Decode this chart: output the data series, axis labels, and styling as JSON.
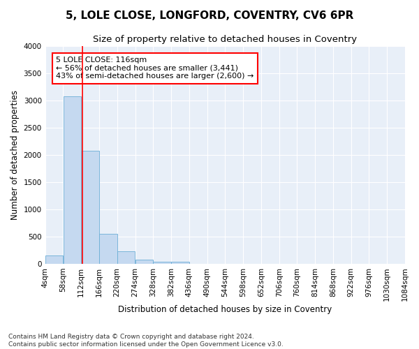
{
  "title": "5, LOLE CLOSE, LONGFORD, COVENTRY, CV6 6PR",
  "subtitle": "Size of property relative to detached houses in Coventry",
  "xlabel": "Distribution of detached houses by size in Coventry",
  "ylabel": "Number of detached properties",
  "bar_color": "#c5d9f0",
  "bar_edge_color": "#6baed6",
  "background_color": "#e8eff8",
  "fig_background_color": "#ffffff",
  "grid_color": "#ffffff",
  "vline_x": 116,
  "vline_color": "red",
  "bin_starts": [
    4,
    58,
    112,
    166,
    220,
    274,
    328,
    382,
    436,
    490,
    544,
    598,
    652,
    706,
    760,
    814,
    868,
    922,
    976,
    1030
  ],
  "bin_width": 54,
  "bar_heights": [
    150,
    3070,
    2070,
    550,
    230,
    70,
    40,
    40,
    5,
    2,
    1,
    1,
    0,
    0,
    0,
    0,
    0,
    0,
    0,
    0
  ],
  "ylim": [
    0,
    4000
  ],
  "yticks": [
    0,
    500,
    1000,
    1500,
    2000,
    2500,
    3000,
    3500,
    4000
  ],
  "xtick_labels": [
    "4sqm",
    "58sqm",
    "112sqm",
    "166sqm",
    "220sqm",
    "274sqm",
    "328sqm",
    "382sqm",
    "436sqm",
    "490sqm",
    "544sqm",
    "598sqm",
    "652sqm",
    "706sqm",
    "760sqm",
    "814sqm",
    "868sqm",
    "922sqm",
    "976sqm",
    "1030sqm",
    "1084sqm"
  ],
  "annotation_text": "5 LOLE CLOSE: 116sqm\n← 56% of detached houses are smaller (3,441)\n43% of semi-detached houses are larger (2,600) →",
  "footer_text": "Contains HM Land Registry data © Crown copyright and database right 2024.\nContains public sector information licensed under the Open Government Licence v3.0.",
  "title_fontsize": 11,
  "subtitle_fontsize": 9.5,
  "axis_label_fontsize": 8.5,
  "tick_fontsize": 7.5,
  "annotation_fontsize": 8,
  "footer_fontsize": 6.5
}
